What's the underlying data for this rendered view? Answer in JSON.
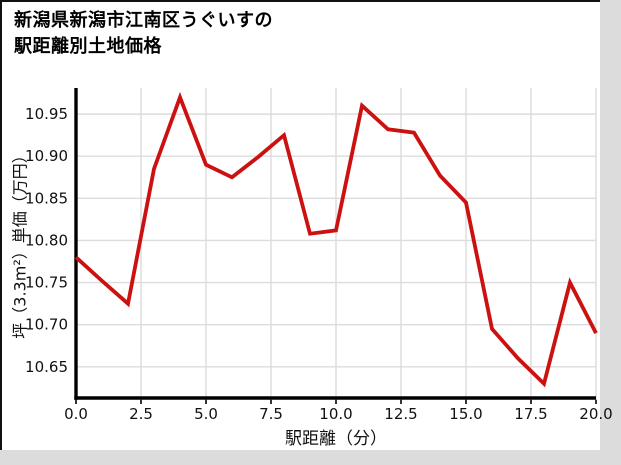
{
  "page": {
    "background": "#dcdcdc",
    "canvas_background": "#ffffff",
    "border_color": "#111111"
  },
  "header": {
    "title_line1": "新潟県新潟市江南区うぐいすの",
    "title_line2": "駅距離別土地価格"
  },
  "chart_data": {
    "type": "line",
    "title": "新潟県新潟市江南区うぐいすの駅距離別土地価格",
    "xlabel": "駅距離（分）",
    "ylabel": "坪（3.3m²）単価（万円）",
    "x": [
      0,
      1,
      2,
      3,
      4,
      5,
      6,
      7,
      8,
      9,
      10,
      11,
      12,
      13,
      14,
      15,
      16,
      17,
      18,
      19,
      20
    ],
    "values": [
      10.78,
      10.752,
      10.725,
      10.885,
      10.97,
      10.89,
      10.875,
      10.899,
      10.925,
      10.808,
      10.812,
      10.96,
      10.932,
      10.928,
      10.877,
      10.845,
      10.695,
      10.66,
      10.63,
      10.75,
      10.69
    ],
    "x_tick_labels": [
      "0.0",
      "2.5",
      "5.0",
      "7.5",
      "10.0",
      "12.5",
      "15.0",
      "17.5",
      "20.0"
    ],
    "x_tick_values": [
      0,
      2.5,
      5,
      7.5,
      10,
      12.5,
      15,
      17.5,
      20
    ],
    "y_tick_labels": [
      "10.65",
      "10.70",
      "10.75",
      "10.80",
      "10.85",
      "10.90",
      "10.95"
    ],
    "y_tick_values": [
      10.65,
      10.7,
      10.75,
      10.8,
      10.85,
      10.9,
      10.95
    ],
    "xlim": [
      0,
      20
    ],
    "ylim": [
      10.613,
      10.981
    ],
    "grid": true,
    "legend": false,
    "colors": {
      "line": "#cc1111",
      "grid": "#dcdcdc",
      "spine": "#000000",
      "text": "#111111"
    }
  }
}
